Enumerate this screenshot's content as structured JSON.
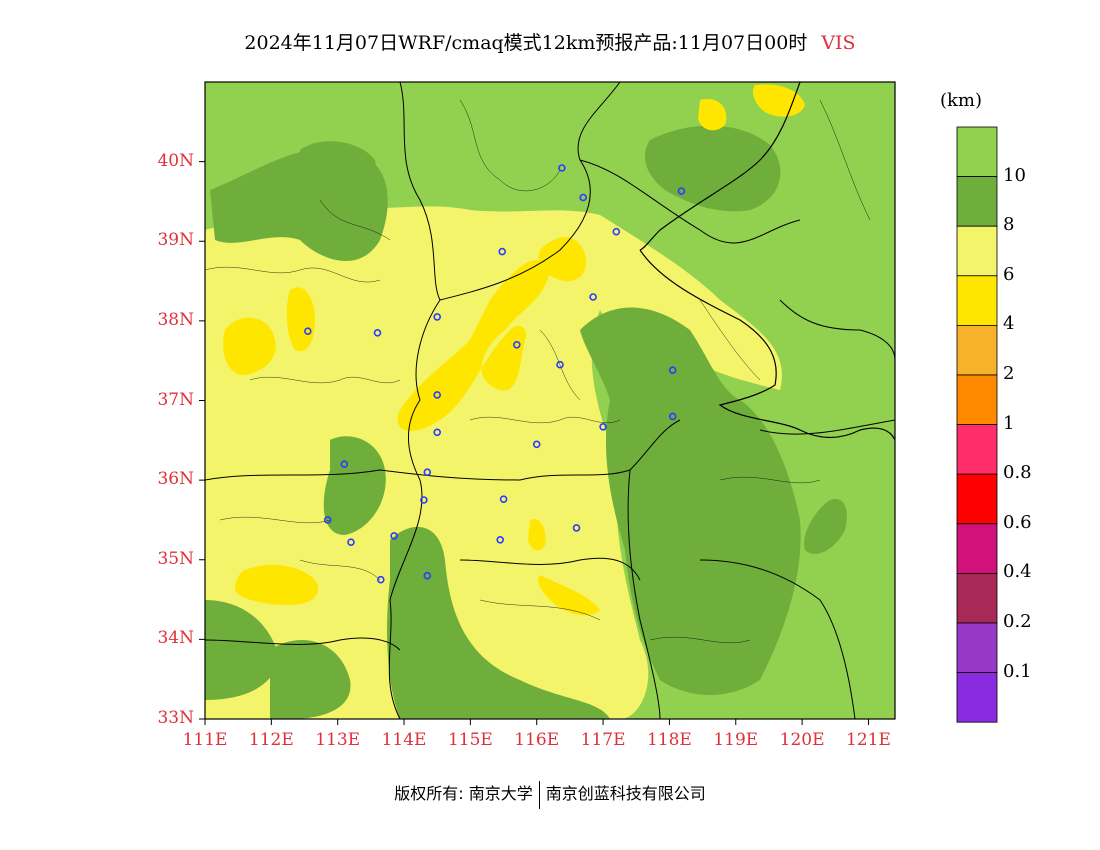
{
  "title": "2024年11月07日WRF/cmaq模式12km预报产品:11月07日00时",
  "variable": "VIS",
  "unit": "(km)",
  "lat_ticks": [
    "40N",
    "39N",
    "38N",
    "37N",
    "36N",
    "35N",
    "34N",
    "33N"
  ],
  "lon_ticks": [
    "111E",
    "112E",
    "113E",
    "114E",
    "115E",
    "116E",
    "117E",
    "118E",
    "119E",
    "120E",
    "121E"
  ],
  "extent": {
    "lon": [
      111,
      121.4
    ],
    "lat": [
      33,
      41
    ]
  },
  "colorbar": {
    "labels": [
      "10",
      "8",
      "6",
      "4",
      "2",
      "1",
      "0.8",
      "0.6",
      "0.4",
      "0.2",
      "0.1"
    ],
    "colors": [
      "#92d050",
      "#6fae3a",
      "#f4f46a",
      "#ffe600",
      "#f5b22a",
      "#ff8a00",
      "#ff2d6a",
      "#ff0000",
      "#d0127a",
      "#a82858",
      "#9838c8",
      "#8a2be2"
    ]
  },
  "stations": [
    [
      116.38,
      39.92
    ],
    [
      116.7,
      39.55
    ],
    [
      117.2,
      39.12
    ],
    [
      118.18,
      39.63
    ],
    [
      115.48,
      38.87
    ],
    [
      116.85,
      38.3
    ],
    [
      112.55,
      37.87
    ],
    [
      113.6,
      37.85
    ],
    [
      114.5,
      38.05
    ],
    [
      115.7,
      37.7
    ],
    [
      116.35,
      37.45
    ],
    [
      118.05,
      37.38
    ],
    [
      114.5,
      37.07
    ],
    [
      114.5,
      36.6
    ],
    [
      118.05,
      36.8
    ],
    [
      117.0,
      36.67
    ],
    [
      116.0,
      36.45
    ],
    [
      113.1,
      36.2
    ],
    [
      114.35,
      36.1
    ],
    [
      114.3,
      35.75
    ],
    [
      115.5,
      35.76
    ],
    [
      112.85,
      35.5
    ],
    [
      113.2,
      35.22
    ],
    [
      113.85,
      35.3
    ],
    [
      116.6,
      35.4
    ],
    [
      115.45,
      35.25
    ],
    [
      114.35,
      34.8
    ],
    [
      113.65,
      34.75
    ]
  ],
  "footer": {
    "copyright": "版权所有: 南京大学",
    "company": "南京创蓝科技有限公司"
  }
}
